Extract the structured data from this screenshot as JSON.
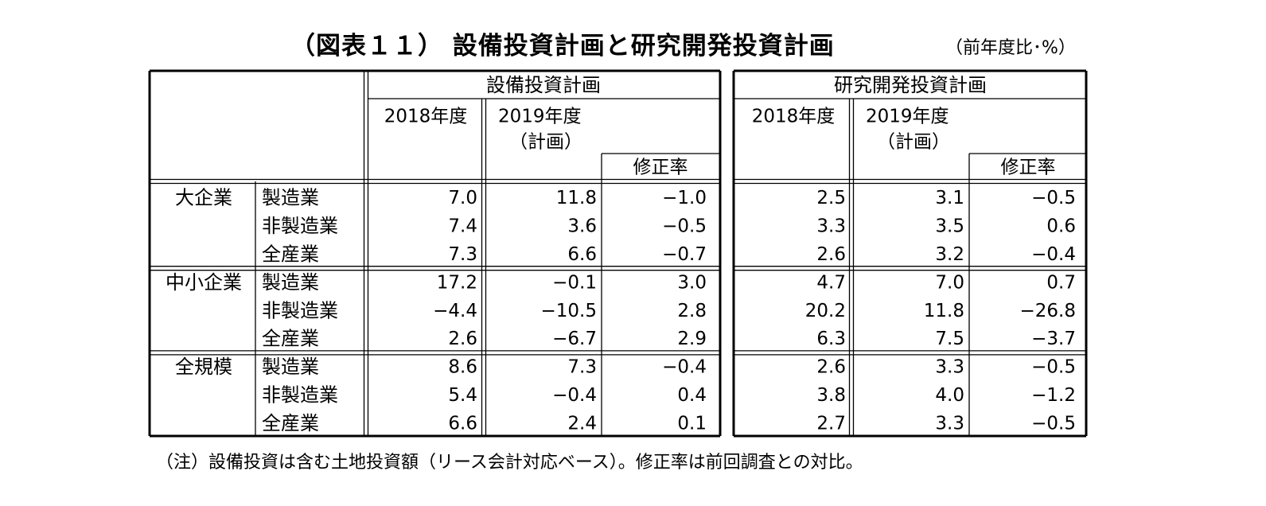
{
  "page": {
    "title": "（図表１１） 設備投資計画と研究開発投資計画",
    "unit": "（前年度比･%）",
    "note": "（注）設備投資は含む土地投資額（リース会計対応ベース）。修正率は前回調査との対比。"
  },
  "chart_data": {
    "type": "table",
    "title": "（図表１１） 設備投資計画と研究開発投資計画",
    "unit": "（前年度比･%）",
    "groups": [
      {
        "name": "設備投資計画",
        "columns": [
          "2018年度",
          "2019年度（計画）",
          "修正率"
        ]
      },
      {
        "name": "研究開発投資計画",
        "columns": [
          "2018年度",
          "2019年度（計画）",
          "修正率"
        ]
      }
    ],
    "headers": {
      "y2018": "2018年度",
      "y2019": "2019年度",
      "plan": "（計画）",
      "revision": "修正率"
    },
    "sections": [
      {
        "size": "大企業",
        "rows": [
          {
            "industry": "製造業",
            "values": [
              "7.0",
              "11.8",
              "−1.0",
              "2.5",
              "3.1",
              "−0.5"
            ]
          },
          {
            "industry": "非製造業",
            "values": [
              "7.4",
              "3.6",
              "−0.5",
              "3.3",
              "3.5",
              "0.6"
            ]
          },
          {
            "industry": "全産業",
            "values": [
              "7.3",
              "6.6",
              "−0.7",
              "2.6",
              "3.2",
              "−0.4"
            ]
          }
        ]
      },
      {
        "size": "中小企業",
        "rows": [
          {
            "industry": "製造業",
            "values": [
              "17.2",
              "−0.1",
              "3.0",
              "4.7",
              "7.0",
              "0.7"
            ]
          },
          {
            "industry": "非製造業",
            "values": [
              "−4.4",
              "−10.5",
              "2.8",
              "20.2",
              "11.8",
              "−26.8"
            ]
          },
          {
            "industry": "全産業",
            "values": [
              "2.6",
              "−6.7",
              "2.9",
              "6.3",
              "7.5",
              "−3.7"
            ]
          }
        ]
      },
      {
        "size": "全規模",
        "rows": [
          {
            "industry": "製造業",
            "values": [
              "8.6",
              "7.3",
              "−0.4",
              "2.6",
              "3.3",
              "−0.5"
            ]
          },
          {
            "industry": "非製造業",
            "values": [
              "5.4",
              "−0.4",
              "0.4",
              "3.8",
              "4.0",
              "−1.2"
            ]
          },
          {
            "industry": "全産業",
            "values": [
              "6.6",
              "2.4",
              "0.1",
              "2.7",
              "3.3",
              "−0.5"
            ]
          }
        ]
      }
    ]
  }
}
